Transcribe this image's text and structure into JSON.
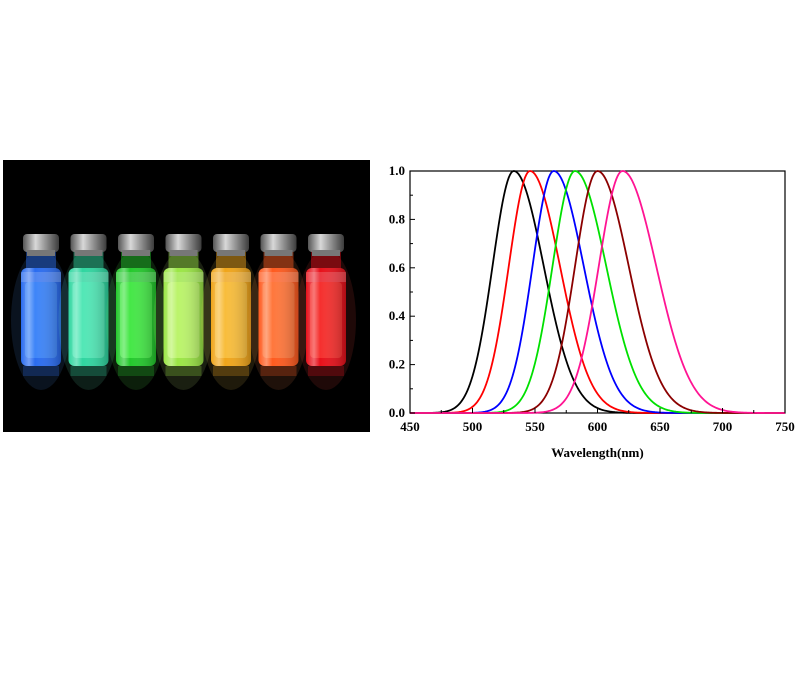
{
  "photo": {
    "vials": [
      {
        "liquid": "#2a6cf0",
        "glow": "#4f9bff"
      },
      {
        "liquid": "#2fd6a0",
        "glow": "#6ff5c9"
      },
      {
        "liquid": "#23c92c",
        "glow": "#63ff5e"
      },
      {
        "liquid": "#9be645",
        "glow": "#d6ff8a"
      },
      {
        "liquid": "#f0a51a",
        "glow": "#ffd25a"
      },
      {
        "liquid": "#ff5a1e",
        "glow": "#ff8f55"
      },
      {
        "liquid": "#e8101a",
        "glow": "#ff4a40"
      }
    ]
  },
  "chart_data": {
    "type": "line",
    "xlabel": "Wavelength(nm)",
    "ylabel": "",
    "xlim": [
      450,
      750
    ],
    "ylim": [
      0.0,
      1.0
    ],
    "xticks": [
      450,
      500,
      550,
      600,
      650,
      700,
      750
    ],
    "yticks": [
      "0.0",
      "0.2",
      "0.4",
      "0.6",
      "0.8",
      "1.0"
    ],
    "grid": false,
    "legend": "none",
    "series": [
      {
        "color": "#000000",
        "peak": 533,
        "width_left": 17,
        "width_right": 24
      },
      {
        "color": "#ff0000",
        "peak": 546,
        "width_left": 17,
        "width_right": 24
      },
      {
        "color": "#0000ff",
        "peak": 565,
        "width_left": 17,
        "width_right": 24
      },
      {
        "color": "#00e000",
        "peak": 582,
        "width_left": 18,
        "width_right": 25
      },
      {
        "color": "#8b0000",
        "peak": 600,
        "width_left": 18,
        "width_right": 25
      },
      {
        "color": "#ff1493",
        "peak": 620,
        "width_left": 19,
        "width_right": 27
      }
    ]
  }
}
